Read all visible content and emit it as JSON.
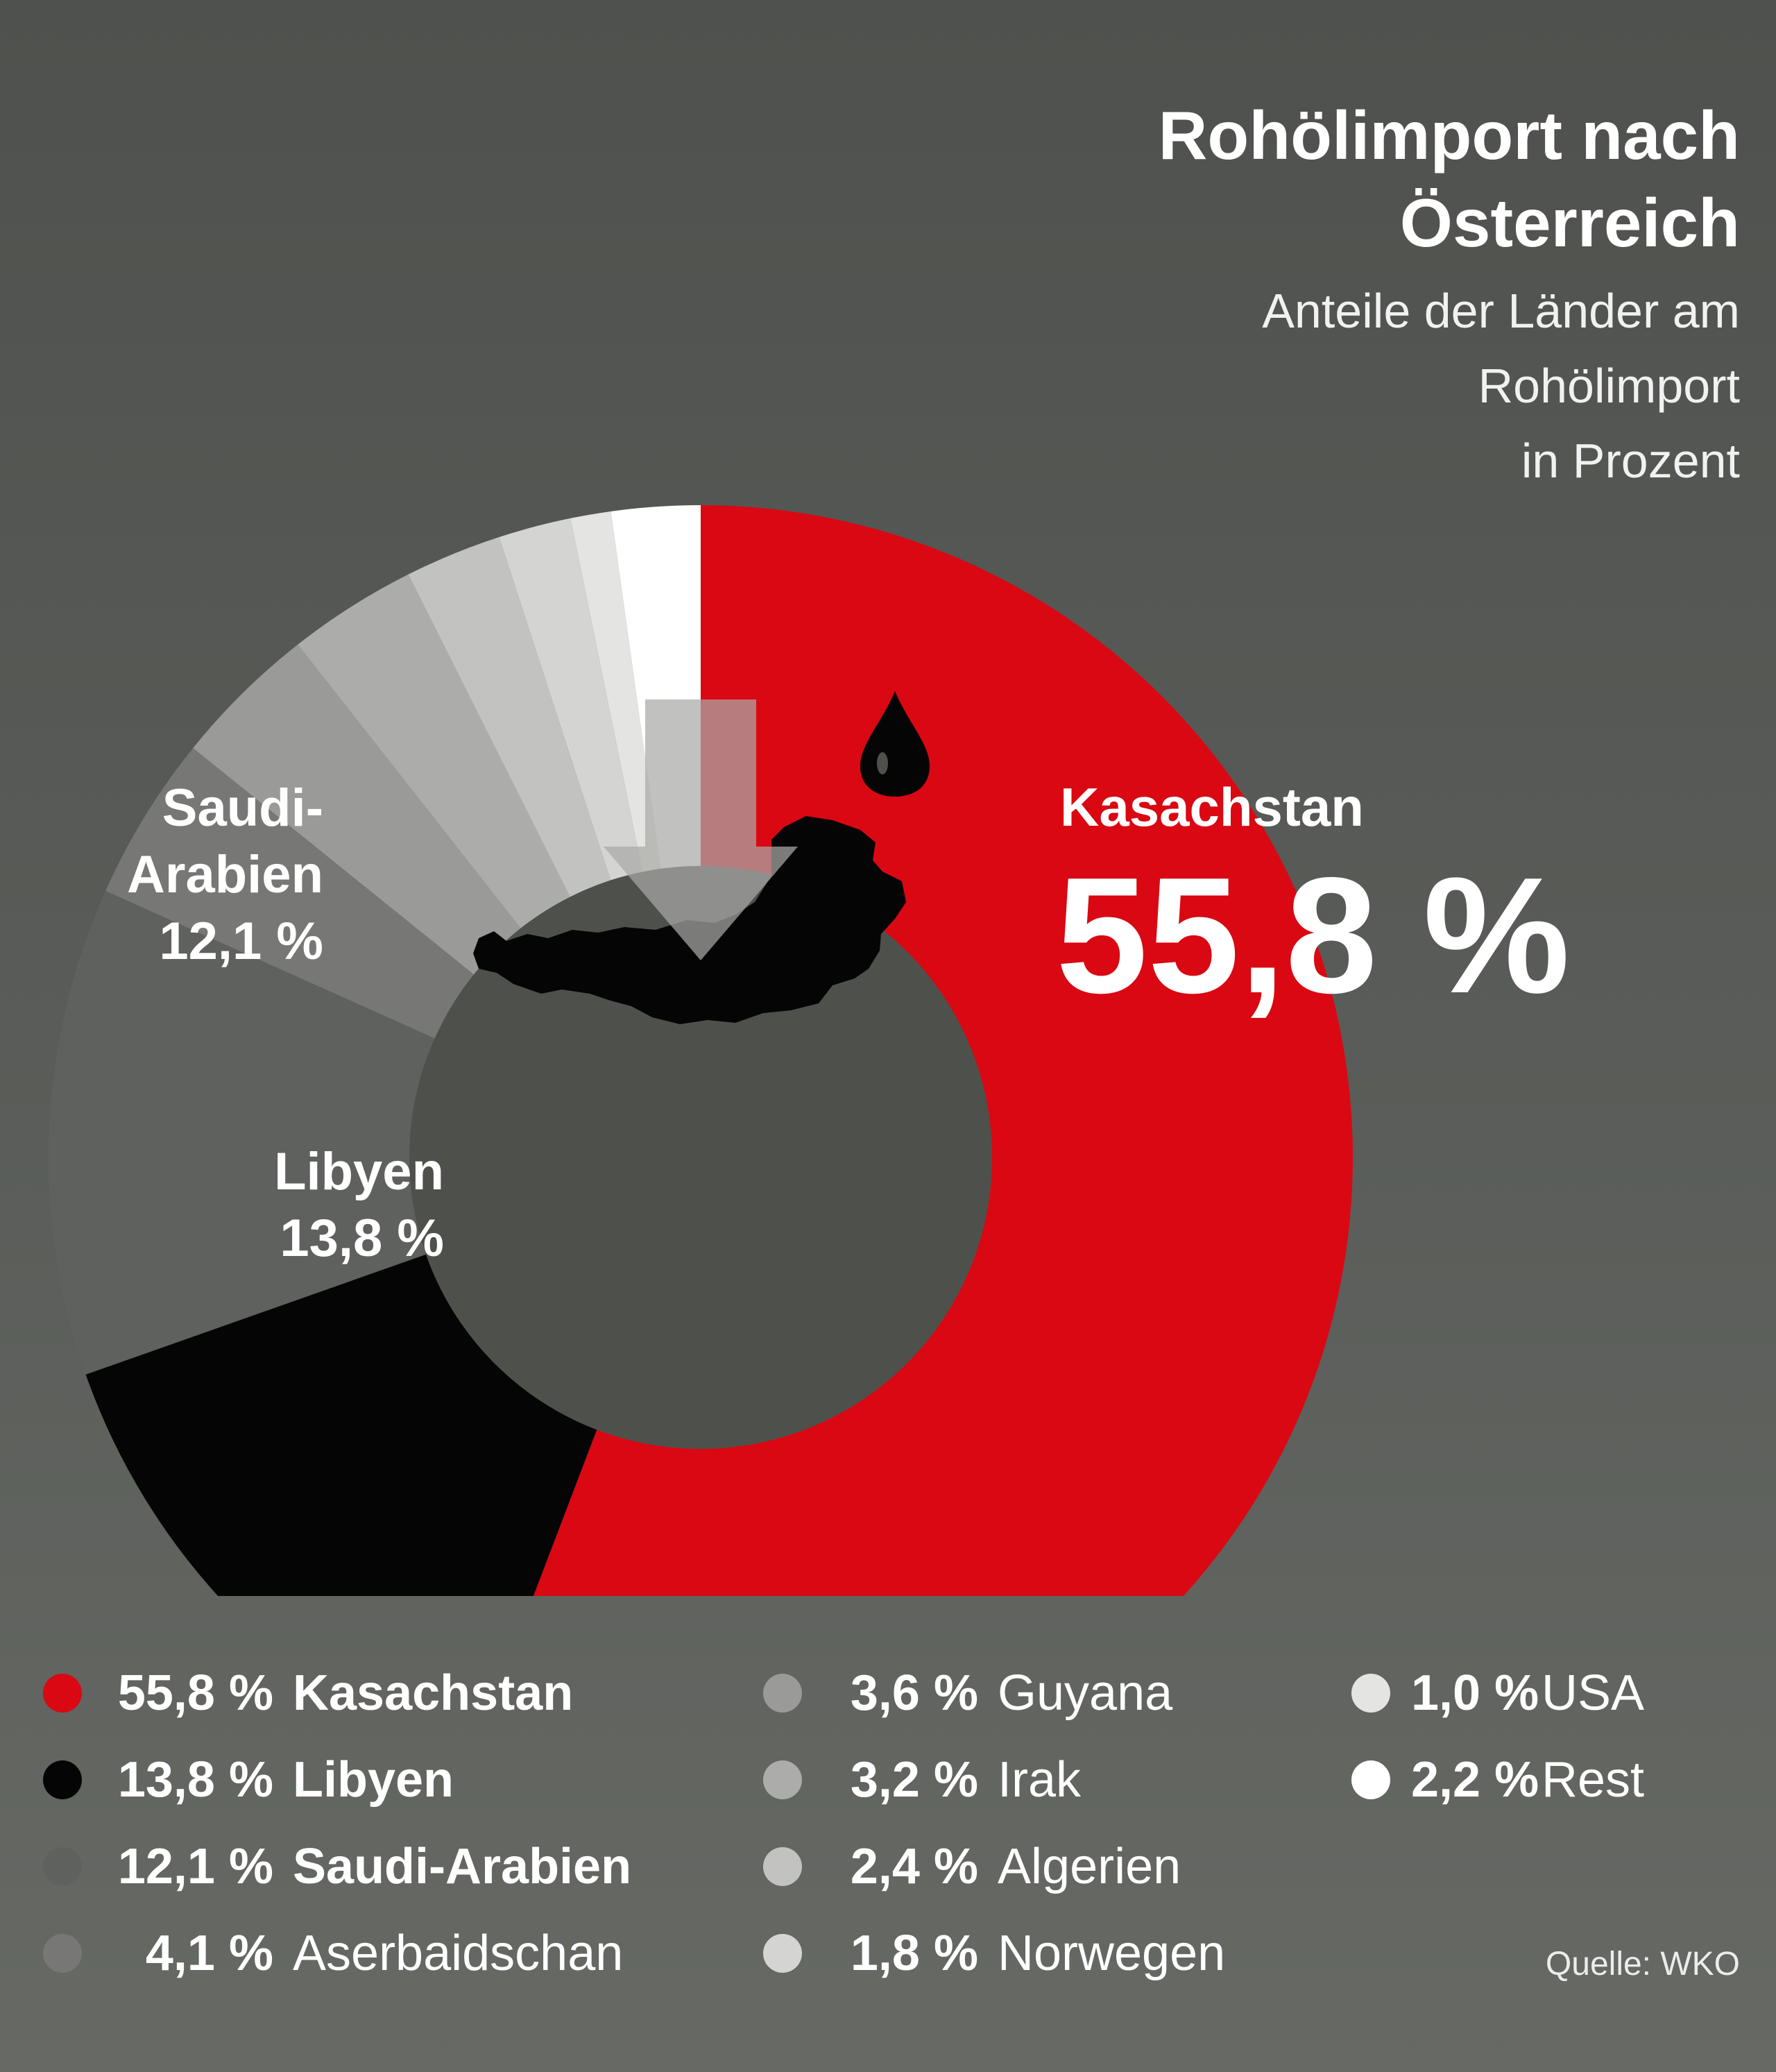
{
  "title_line1": "Rohölimport nach",
  "title_line2": "Österreich",
  "subtitle_line1": "Anteile der Länder am",
  "subtitle_line2": "Rohölimport",
  "subtitle_line3": "in Prozent",
  "source": "Quelle: WKO",
  "colors": {
    "accent_red": "#d90812",
    "background": "#565955",
    "center_disc": "#4e504c"
  },
  "icons": [
    "downward-arrow-icon",
    "oil-drop-icon",
    "austria-map-icon"
  ],
  "chart_data": {
    "type": "pie",
    "style": "donut",
    "unit": "%",
    "slices": [
      {
        "name": "Kasachstan",
        "value": 55.8,
        "label": "55,8 %",
        "legend_pct": "55,8 %",
        "color": "#d90812",
        "bold_name": true
      },
      {
        "name": "Libyen",
        "value": 13.8,
        "label": "13,8 %",
        "legend_pct": "13,8 %",
        "color": "#050505",
        "bold_name": true
      },
      {
        "name": "Saudi-Arabien",
        "value": 12.1,
        "label": "12,1 %",
        "legend_pct": "12,1 %",
        "color": "#5f615e",
        "bold_name": true
      },
      {
        "name": "Aserbaidschan",
        "value": 4.1,
        "label": "",
        "legend_pct": "4,1 %",
        "color": "#777875",
        "bold_name": false
      },
      {
        "name": "Guyana",
        "value": 3.6,
        "label": "",
        "legend_pct": "3,6 %",
        "color": "#9a9b98",
        "bold_name": false
      },
      {
        "name": "Irak",
        "value": 3.2,
        "label": "",
        "legend_pct": "3,2 %",
        "color": "#acadaa",
        "bold_name": false
      },
      {
        "name": "Algerien",
        "value": 2.4,
        "label": "",
        "legend_pct": "2,4 %",
        "color": "#c2c3c0",
        "bold_name": false
      },
      {
        "name": "Norwegen",
        "value": 1.8,
        "label": "",
        "legend_pct": "1,8 %",
        "color": "#d4d5d2",
        "bold_name": false
      },
      {
        "name": "USA",
        "value": 1.0,
        "label": "",
        "legend_pct": "1,0 %",
        "color": "#e4e4e2",
        "bold_name": false
      },
      {
        "name": "Rest",
        "value": 2.2,
        "label": "",
        "legend_pct": "2,2 %",
        "color": "#ffffff",
        "bold_name": false
      }
    ],
    "slice_labels": {
      "Kasachstan": {
        "name": "Kasachstan",
        "value": "55,8 %"
      },
      "Libyen": {
        "name": "Libyen",
        "value": "13,8 %"
      },
      "Saudi-Arabien": {
        "name_line1": "Saudi-",
        "name_line2": "Arabien",
        "value": "12,1 %"
      }
    },
    "legend_placement": "bottom",
    "legend_columns": 3
  }
}
